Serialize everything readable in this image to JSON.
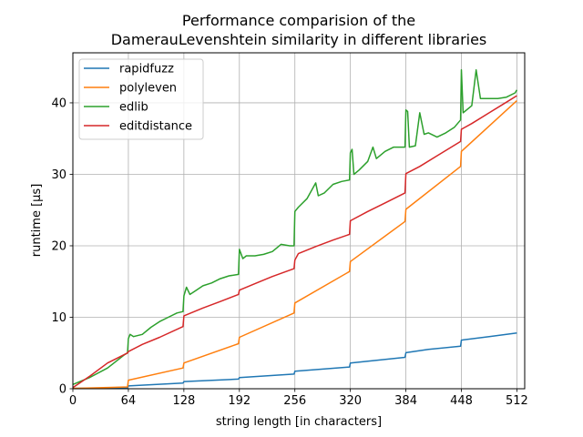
{
  "chart_data": {
    "type": "line",
    "title_lines": [
      "Performance comparision of the",
      "DamerauLevenshtein similarity in different libraries"
    ],
    "xlabel": "string length [in characters]",
    "ylabel": "runtime [μs]",
    "xlim": [
      0,
      521
    ],
    "ylim": [
      0,
      47
    ],
    "xticks": [
      0,
      64,
      128,
      192,
      256,
      320,
      384,
      448,
      512
    ],
    "yticks": [
      0,
      10,
      20,
      30,
      40
    ],
    "grid": true,
    "legend_position": "top-left",
    "series": [
      {
        "name": "rapidfuzz",
        "color": "#1f77b4",
        "points": [
          [
            0,
            0.05
          ],
          [
            63,
            0.15
          ],
          [
            64,
            0.4
          ],
          [
            127,
            0.8
          ],
          [
            128,
            1.0
          ],
          [
            191,
            1.35
          ],
          [
            192,
            1.55
          ],
          [
            255,
            2.05
          ],
          [
            256,
            2.45
          ],
          [
            319,
            3.05
          ],
          [
            320,
            3.6
          ],
          [
            383,
            4.4
          ],
          [
            384,
            5.05
          ],
          [
            410,
            5.5
          ],
          [
            447,
            5.95
          ],
          [
            448,
            6.8
          ],
          [
            480,
            7.3
          ],
          [
            512,
            7.8
          ]
        ]
      },
      {
        "name": "polyleven",
        "color": "#ff7f0e",
        "points": [
          [
            0,
            0.05
          ],
          [
            63,
            0.25
          ],
          [
            64,
            1.2
          ],
          [
            127,
            2.9
          ],
          [
            128,
            3.6
          ],
          [
            191,
            6.3
          ],
          [
            192,
            7.2
          ],
          [
            255,
            10.6
          ],
          [
            256,
            12.0
          ],
          [
            319,
            16.4
          ],
          [
            320,
            17.8
          ],
          [
            383,
            23.4
          ],
          [
            384,
            25.1
          ],
          [
            447,
            31.1
          ],
          [
            448,
            33.2
          ],
          [
            512,
            40.3
          ]
        ]
      },
      {
        "name": "edlib",
        "color": "#2ca02c",
        "points": [
          [
            0,
            0.6
          ],
          [
            20,
            1.6
          ],
          [
            40,
            2.9
          ],
          [
            60,
            4.8
          ],
          [
            63,
            5.0
          ],
          [
            64,
            7.0
          ],
          [
            66,
            7.6
          ],
          [
            70,
            7.3
          ],
          [
            80,
            7.6
          ],
          [
            90,
            8.6
          ],
          [
            100,
            9.4
          ],
          [
            110,
            10.0
          ],
          [
            120,
            10.6
          ],
          [
            127,
            10.8
          ],
          [
            128,
            13.0
          ],
          [
            131,
            14.2
          ],
          [
            135,
            13.2
          ],
          [
            140,
            13.6
          ],
          [
            150,
            14.4
          ],
          [
            160,
            14.8
          ],
          [
            170,
            15.4
          ],
          [
            180,
            15.8
          ],
          [
            191,
            16.0
          ],
          [
            192,
            19.5
          ],
          [
            196,
            18.2
          ],
          [
            200,
            18.6
          ],
          [
            210,
            18.6
          ],
          [
            220,
            18.8
          ],
          [
            230,
            19.2
          ],
          [
            240,
            20.2
          ],
          [
            250,
            20.0
          ],
          [
            255,
            20.0
          ],
          [
            256,
            24.8
          ],
          [
            260,
            25.4
          ],
          [
            270,
            26.6
          ],
          [
            280,
            28.8
          ],
          [
            283,
            27.0
          ],
          [
            290,
            27.4
          ],
          [
            300,
            28.6
          ],
          [
            310,
            29.0
          ],
          [
            319,
            29.2
          ],
          [
            320,
            33.0
          ],
          [
            322,
            33.5
          ],
          [
            324,
            30.0
          ],
          [
            330,
            30.6
          ],
          [
            340,
            31.8
          ],
          [
            346,
            33.8
          ],
          [
            350,
            32.2
          ],
          [
            360,
            33.2
          ],
          [
            370,
            33.8
          ],
          [
            383,
            33.8
          ],
          [
            384,
            39.0
          ],
          [
            386,
            38.8
          ],
          [
            388,
            33.8
          ],
          [
            395,
            34.0
          ],
          [
            400,
            38.6
          ],
          [
            405,
            35.6
          ],
          [
            410,
            35.8
          ],
          [
            420,
            35.2
          ],
          [
            430,
            35.8
          ],
          [
            440,
            36.6
          ],
          [
            447,
            37.6
          ],
          [
            448,
            44.6
          ],
          [
            450,
            38.6
          ],
          [
            460,
            39.6
          ],
          [
            465,
            44.6
          ],
          [
            470,
            40.6
          ],
          [
            480,
            40.6
          ],
          [
            490,
            40.6
          ],
          [
            500,
            40.8
          ],
          [
            510,
            41.4
          ],
          [
            512,
            41.8
          ]
        ]
      },
      {
        "name": "editdistance",
        "color": "#d62728",
        "points": [
          [
            0,
            0.15
          ],
          [
            20,
            1.8
          ],
          [
            40,
            3.6
          ],
          [
            63,
            5.0
          ],
          [
            64,
            5.2
          ],
          [
            80,
            6.2
          ],
          [
            100,
            7.2
          ],
          [
            127,
            8.7
          ],
          [
            128,
            10.2
          ],
          [
            150,
            11.3
          ],
          [
            170,
            12.2
          ],
          [
            191,
            13.2
          ],
          [
            192,
            13.8
          ],
          [
            210,
            14.7
          ],
          [
            230,
            15.7
          ],
          [
            255,
            16.8
          ],
          [
            256,
            18.0
          ],
          [
            260,
            18.9
          ],
          [
            280,
            19.9
          ],
          [
            300,
            20.8
          ],
          [
            319,
            21.6
          ],
          [
            320,
            23.5
          ],
          [
            340,
            24.8
          ],
          [
            360,
            26.0
          ],
          [
            383,
            27.4
          ],
          [
            384,
            30.1
          ],
          [
            400,
            31.1
          ],
          [
            420,
            32.6
          ],
          [
            447,
            34.6
          ],
          [
            448,
            36.3
          ],
          [
            460,
            37.1
          ],
          [
            480,
            38.6
          ],
          [
            500,
            40.1
          ],
          [
            512,
            41.0
          ]
        ]
      }
    ]
  }
}
